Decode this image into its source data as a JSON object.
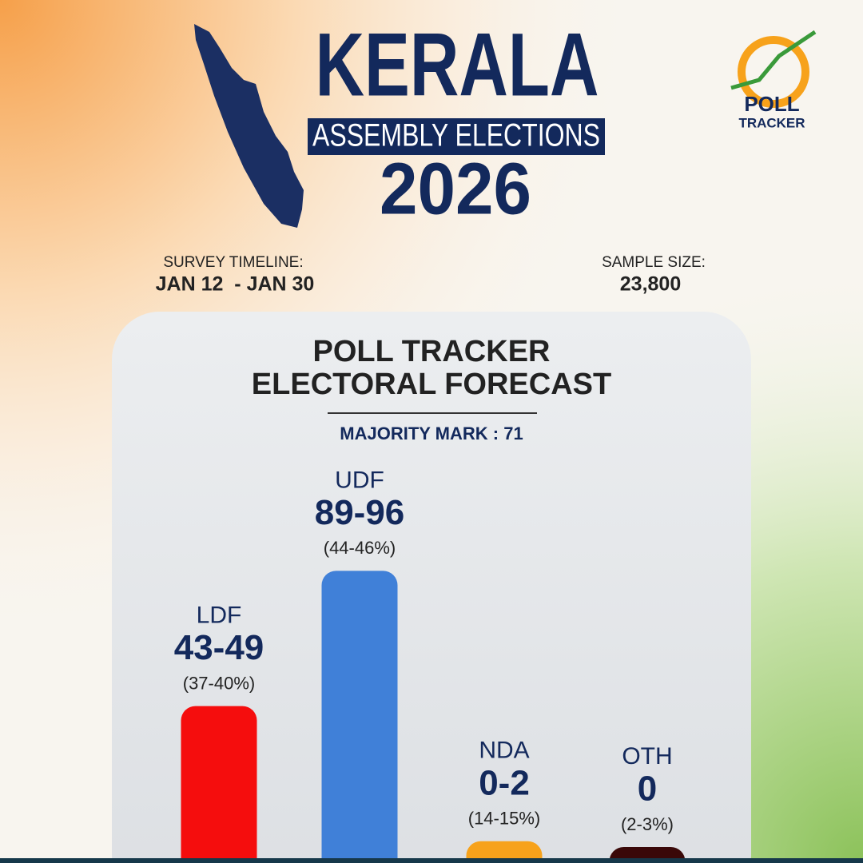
{
  "header": {
    "title": "KERALA",
    "subtitle": "ASSEMBLY ELECTIONS",
    "year": "2026",
    "timeline_label": "SURVEY TIMELINE:",
    "timeline": "JAN 12  - JAN 30",
    "sample_label": "SAMPLE SIZE:",
    "sample": "23,800",
    "logo_top": "POLL",
    "logo_bottom": "TRACKER"
  },
  "chart_data": {
    "type": "bar",
    "title": "POLL TRACKER",
    "subtitle": "ELECTORAL FORECAST",
    "annotation": "MAJORITY MARK : 71",
    "categories": [
      "LDF",
      "UDF",
      "NDA",
      "OTH"
    ],
    "values": [
      49,
      96,
      2,
      0
    ],
    "value_labels": [
      "43-49",
      "89-96",
      "0-2",
      "0"
    ],
    "share_labels": [
      "(37-40%)",
      "(44-46%)",
      "(14-15%)",
      "(2-3%)"
    ],
    "colors": [
      "#f50d0d",
      "#4080d8",
      "#f7a21b",
      "#3a0808"
    ]
  }
}
